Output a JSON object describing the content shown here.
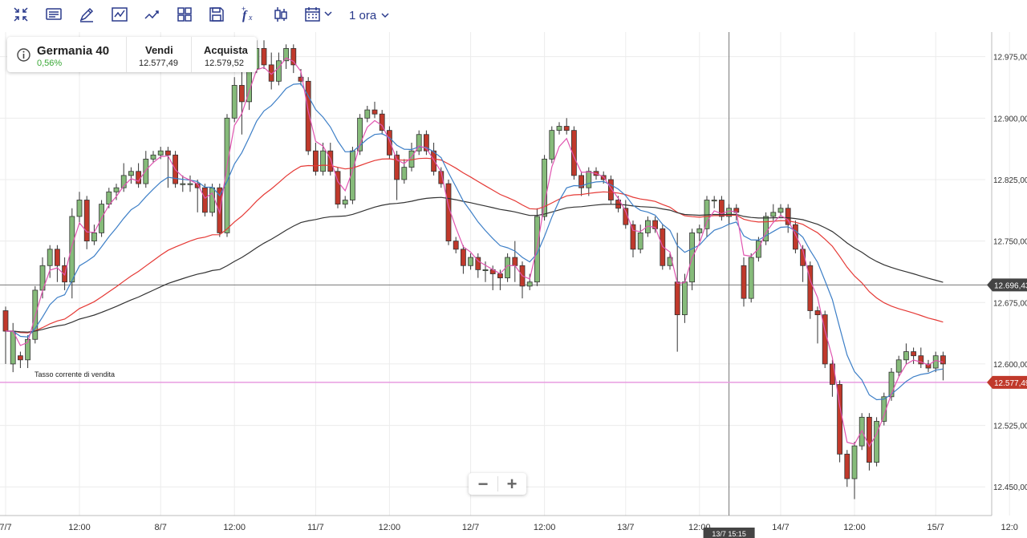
{
  "toolbar": {
    "icons": [
      "collapse-icon",
      "notes-icon",
      "draw-icon",
      "indicator-icon",
      "trend-icon",
      "layout-icon",
      "save-icon",
      "formula-icon",
      "candlestick-icon",
      "calendar-icon"
    ],
    "timeframe": "1 ora"
  },
  "instrument": {
    "name": "Germania 40",
    "change": "0,56%",
    "sell_label": "Vendi",
    "sell_value": "12.577,49",
    "buy_label": "Acquista",
    "buy_value": "12.579,52"
  },
  "zoom": {
    "minus": "−",
    "plus": "+"
  },
  "colors": {
    "bull": "#86bb7a",
    "bear": "#c0392b",
    "ma_fast": "#e055b0",
    "ma_blue": "#3d7fc7",
    "ma_red": "#e53935",
    "ma_black": "#333333",
    "sell_line": "#e89be0",
    "crosshair": "#777777"
  },
  "chart_data": {
    "type": "candlestick",
    "ylim": [
      12415,
      13005
    ],
    "y_ticks": [
      "12.975,00",
      "12.900,00",
      "12.825,00",
      "12.750,00",
      "12.675,00",
      "12.600,00",
      "12.525,00",
      "12.450,00"
    ],
    "y_tick_values": [
      12975,
      12900,
      12825,
      12750,
      12675,
      12600,
      12525,
      12450
    ],
    "x_ticks": [
      "7/7",
      "12:00",
      "8/7",
      "12:00",
      "11/7",
      "12:00",
      "12/7",
      "12:00",
      "13/7",
      "12:00",
      "14/7",
      "12:00",
      "15/7",
      "12:0"
    ],
    "x_tick_slots": [
      0,
      10,
      21,
      31,
      42,
      52,
      63,
      73,
      84,
      94,
      105,
      115,
      126,
      136
    ],
    "current_price_label": "12.577,49",
    "current_price": 12577.49,
    "sell_rate_label": "Tasso corrente di vendita",
    "crosshair_price_label": "12.696,43",
    "crosshair_price": 12696.43,
    "crosshair_time_label": "13/7 15:15",
    "crosshair_slot": 98,
    "candles": [
      [
        12665,
        12640,
        12670,
        12600
      ],
      [
        12600,
        12640,
        12650,
        12590
      ],
      [
        12610,
        12605,
        12615,
        12595
      ],
      [
        12605,
        12630,
        12635,
        12595
      ],
      [
        12630,
        12690,
        12695,
        12625
      ],
      [
        12690,
        12720,
        12730,
        12680
      ],
      [
        12720,
        12740,
        12745,
        12705
      ],
      [
        12740,
        12720,
        12745,
        12700
      ],
      [
        12720,
        12700,
        12730,
        12690
      ],
      [
        12700,
        12780,
        12790,
        12680
      ],
      [
        12780,
        12800,
        12810,
        12770
      ],
      [
        12800,
        12750,
        12805,
        12740
      ],
      [
        12750,
        12760,
        12770,
        12745
      ],
      [
        12760,
        12795,
        12800,
        12755
      ],
      [
        12795,
        12810,
        12815,
        12790
      ],
      [
        12810,
        12815,
        12820,
        12800
      ],
      [
        12815,
        12830,
        12845,
        12810
      ],
      [
        12830,
        12835,
        12840,
        12820
      ],
      [
        12835,
        12820,
        12845,
        12815
      ],
      [
        12820,
        12850,
        12860,
        12815
      ],
      [
        12850,
        12855,
        12860,
        12845
      ],
      [
        12855,
        12860,
        12865,
        12850
      ],
      [
        12860,
        12855,
        12865,
        12815
      ],
      [
        12855,
        12820,
        12860,
        12815
      ],
      [
        12820,
        12820,
        12830,
        12810
      ],
      [
        12820,
        12820,
        12830,
        12810
      ],
      [
        12820,
        12815,
        12825,
        12785
      ],
      [
        12815,
        12785,
        12820,
        12780
      ],
      [
        12785,
        12815,
        12820,
        12780
      ],
      [
        12815,
        12760,
        12820,
        12755
      ],
      [
        12760,
        12900,
        12905,
        12755
      ],
      [
        12900,
        12940,
        12950,
        12895
      ],
      [
        12940,
        12920,
        12960,
        12880
      ],
      [
        12920,
        12960,
        12990,
        12910
      ],
      [
        12960,
        12985,
        12995,
        12955
      ],
      [
        12985,
        12965,
        12995,
        12960
      ],
      [
        12965,
        12945,
        12980,
        12935
      ],
      [
        12945,
        12970,
        12980,
        12940
      ],
      [
        12970,
        12985,
        12990,
        12960
      ],
      [
        12985,
        12965,
        12990,
        12955
      ],
      [
        12950,
        12945,
        12960,
        12940
      ],
      [
        12945,
        12860,
        12950,
        12855
      ],
      [
        12860,
        12835,
        12870,
        12830
      ],
      [
        12835,
        12860,
        12870,
        12830
      ],
      [
        12860,
        12835,
        12870,
        12830
      ],
      [
        12835,
        12795,
        12840,
        12790
      ],
      [
        12795,
        12800,
        12805,
        12790
      ],
      [
        12800,
        12860,
        12865,
        12795
      ],
      [
        12860,
        12900,
        12905,
        12855
      ],
      [
        12900,
        12910,
        12915,
        12895
      ],
      [
        12910,
        12905,
        12920,
        12900
      ],
      [
        12905,
        12885,
        12910,
        12880
      ],
      [
        12885,
        12855,
        12890,
        12850
      ],
      [
        12855,
        12825,
        12860,
        12800
      ],
      [
        12825,
        12840,
        12850,
        12820
      ],
      [
        12840,
        12860,
        12870,
        12835
      ],
      [
        12860,
        12880,
        12885,
        12855
      ],
      [
        12880,
        12860,
        12885,
        12855
      ],
      [
        12860,
        12835,
        12870,
        12830
      ],
      [
        12835,
        12820,
        12840,
        12815
      ],
      [
        12820,
        12750,
        12825,
        12745
      ],
      [
        12750,
        12740,
        12755,
        12735
      ],
      [
        12740,
        12720,
        12745,
        12710
      ],
      [
        12720,
        12730,
        12735,
        12715
      ],
      [
        12730,
        12715,
        12735,
        12705
      ],
      [
        12715,
        12715,
        12725,
        12700
      ],
      [
        12715,
        12710,
        12720,
        12690
      ],
      [
        12710,
        12705,
        12715,
        12690
      ],
      [
        12705,
        12730,
        12735,
        12700
      ],
      [
        12730,
        12720,
        12750,
        12700
      ],
      [
        12720,
        12695,
        12725,
        12680
      ],
      [
        12695,
        12700,
        12710,
        12690
      ],
      [
        12700,
        12780,
        12790,
        12695
      ],
      [
        12780,
        12850,
        12855,
        12775
      ],
      [
        12850,
        12885,
        12890,
        12845
      ],
      [
        12885,
        12890,
        12895,
        12880
      ],
      [
        12890,
        12885,
        12900,
        12880
      ],
      [
        12885,
        12830,
        12890,
        12825
      ],
      [
        12830,
        12815,
        12835,
        12805
      ],
      [
        12815,
        12835,
        12840,
        12805
      ],
      [
        12835,
        12830,
        12840,
        12825
      ],
      [
        12830,
        12825,
        12835,
        12820
      ],
      [
        12825,
        12800,
        12830,
        12795
      ],
      [
        12800,
        12790,
        12805,
        12785
      ],
      [
        12790,
        12770,
        12800,
        12765
      ],
      [
        12770,
        12740,
        12775,
        12730
      ],
      [
        12740,
        12760,
        12770,
        12735
      ],
      [
        12760,
        12775,
        12780,
        12755
      ],
      [
        12775,
        12765,
        12780,
        12760
      ],
      [
        12765,
        12720,
        12770,
        12715
      ],
      [
        12720,
        12730,
        12735,
        12715
      ],
      [
        12700,
        12660,
        12760,
        12615
      ],
      [
        12660,
        12700,
        12710,
        12650
      ],
      [
        12700,
        12760,
        12765,
        12690
      ],
      [
        12760,
        12765,
        12770,
        12750
      ],
      [
        12765,
        12800,
        12805,
        12755
      ],
      [
        12800,
        12800,
        12805,
        12790
      ],
      [
        12800,
        12780,
        12805,
        12775
      ],
      [
        12780,
        12790,
        12795,
        12770
      ],
      [
        12790,
        12785,
        12795,
        12775
      ],
      [
        12720,
        12680,
        12730,
        12670
      ],
      [
        12680,
        12730,
        12735,
        12675
      ],
      [
        12730,
        12750,
        12755,
        12725
      ],
      [
        12750,
        12780,
        12785,
        12745
      ],
      [
        12780,
        12785,
        12795,
        12775
      ],
      [
        12785,
        12790,
        12795,
        12780
      ],
      [
        12790,
        12770,
        12795,
        12760
      ],
      [
        12770,
        12740,
        12775,
        12735
      ],
      [
        12740,
        12720,
        12745,
        12700
      ],
      [
        12720,
        12665,
        12725,
        12655
      ],
      [
        12665,
        12660,
        12670,
        12625
      ],
      [
        12660,
        12600,
        12665,
        12595
      ],
      [
        12600,
        12575,
        12605,
        12560
      ],
      [
        12575,
        12490,
        12580,
        12480
      ],
      [
        12490,
        12460,
        12495,
        12450
      ],
      [
        12460,
        12500,
        12505,
        12435
      ],
      [
        12500,
        12535,
        12540,
        12495
      ],
      [
        12535,
        12480,
        12540,
        12470
      ],
      [
        12480,
        12530,
        12535,
        12475
      ],
      [
        12530,
        12560,
        12565,
        12525
      ],
      [
        12560,
        12590,
        12595,
        12555
      ],
      [
        12590,
        12605,
        12610,
        12585
      ],
      [
        12605,
        12615,
        12625,
        12600
      ],
      [
        12615,
        12610,
        12620,
        12600
      ],
      [
        12610,
        12600,
        12620,
        12595
      ],
      [
        12600,
        12595,
        12605,
        12590
      ],
      [
        12595,
        12610,
        12615,
        12590
      ],
      [
        12610,
        12600,
        12615,
        12580
      ]
    ]
  }
}
